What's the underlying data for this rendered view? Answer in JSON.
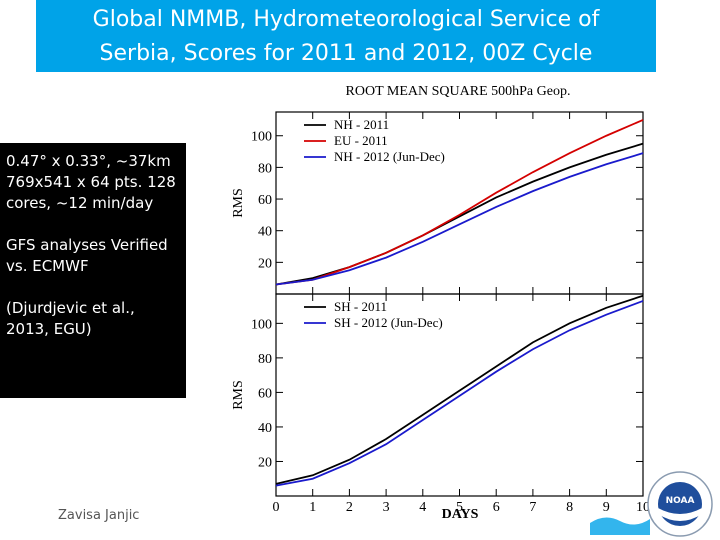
{
  "slide": {
    "title_line1": "Global NMMB, Hydrometeorological Service of",
    "title_line2": "Serbia, Scores for 2011 and 2012, 00Z Cycle",
    "info_lines": [
      "0.47° x 0.33°, ~37km 769x541 x 64 pts. 128 cores, ~12 min/day",
      "GFS analyses Verified vs. ECMWF",
      "(Djurdjevic et al., 2013, EGU)"
    ],
    "author": "Zavisa Janjic",
    "logo_text": "NOAA",
    "accent_color": "#00a3e8"
  },
  "chart_data": {
    "type": "line",
    "title": "ROOT MEAN SQUARE 500hPa Geop.",
    "xlabel": "DAYS",
    "x": [
      0,
      1,
      2,
      3,
      4,
      5,
      6,
      7,
      8,
      9,
      10
    ],
    "xlim": [
      0,
      10
    ],
    "grid": false,
    "panels": [
      {
        "ylabel": "RMS",
        "ylim": [
          0,
          115
        ],
        "yticks": [
          20,
          40,
          60,
          80,
          100
        ],
        "legend": "top-left",
        "series": [
          {
            "name": "NH - 2011",
            "color": "#000000",
            "values": [
              6,
              10,
              17,
              26,
              37,
              49,
              61,
              71,
              80,
              88,
              95
            ]
          },
          {
            "name": "EU - 2011",
            "color": "#d40000",
            "values": [
              6,
              9,
              17,
              26,
              37,
              50,
              64,
              77,
              89,
              100,
              110
            ]
          },
          {
            "name": "NH - 2012 (Jun-Dec)",
            "color": "#1a1acc",
            "values": [
              6,
              9,
              15,
              23,
              33,
              44,
              55,
              65,
              74,
              82,
              89
            ]
          }
        ]
      },
      {
        "ylabel": "RMS",
        "ylim": [
          0,
          117
        ],
        "yticks": [
          20,
          40,
          60,
          80,
          100
        ],
        "legend": "top-left",
        "series": [
          {
            "name": "SH - 2011",
            "color": "#000000",
            "values": [
              7,
              12,
              21,
              33,
              47,
              61,
              75,
              89,
              100,
              109,
              116
            ]
          },
          {
            "name": "SH - 2012 (Jun-Dec)",
            "color": "#1a1acc",
            "values": [
              6,
              10,
              19,
              30,
              44,
              58,
              72,
              85,
              96,
              105,
              113
            ]
          }
        ]
      }
    ]
  }
}
